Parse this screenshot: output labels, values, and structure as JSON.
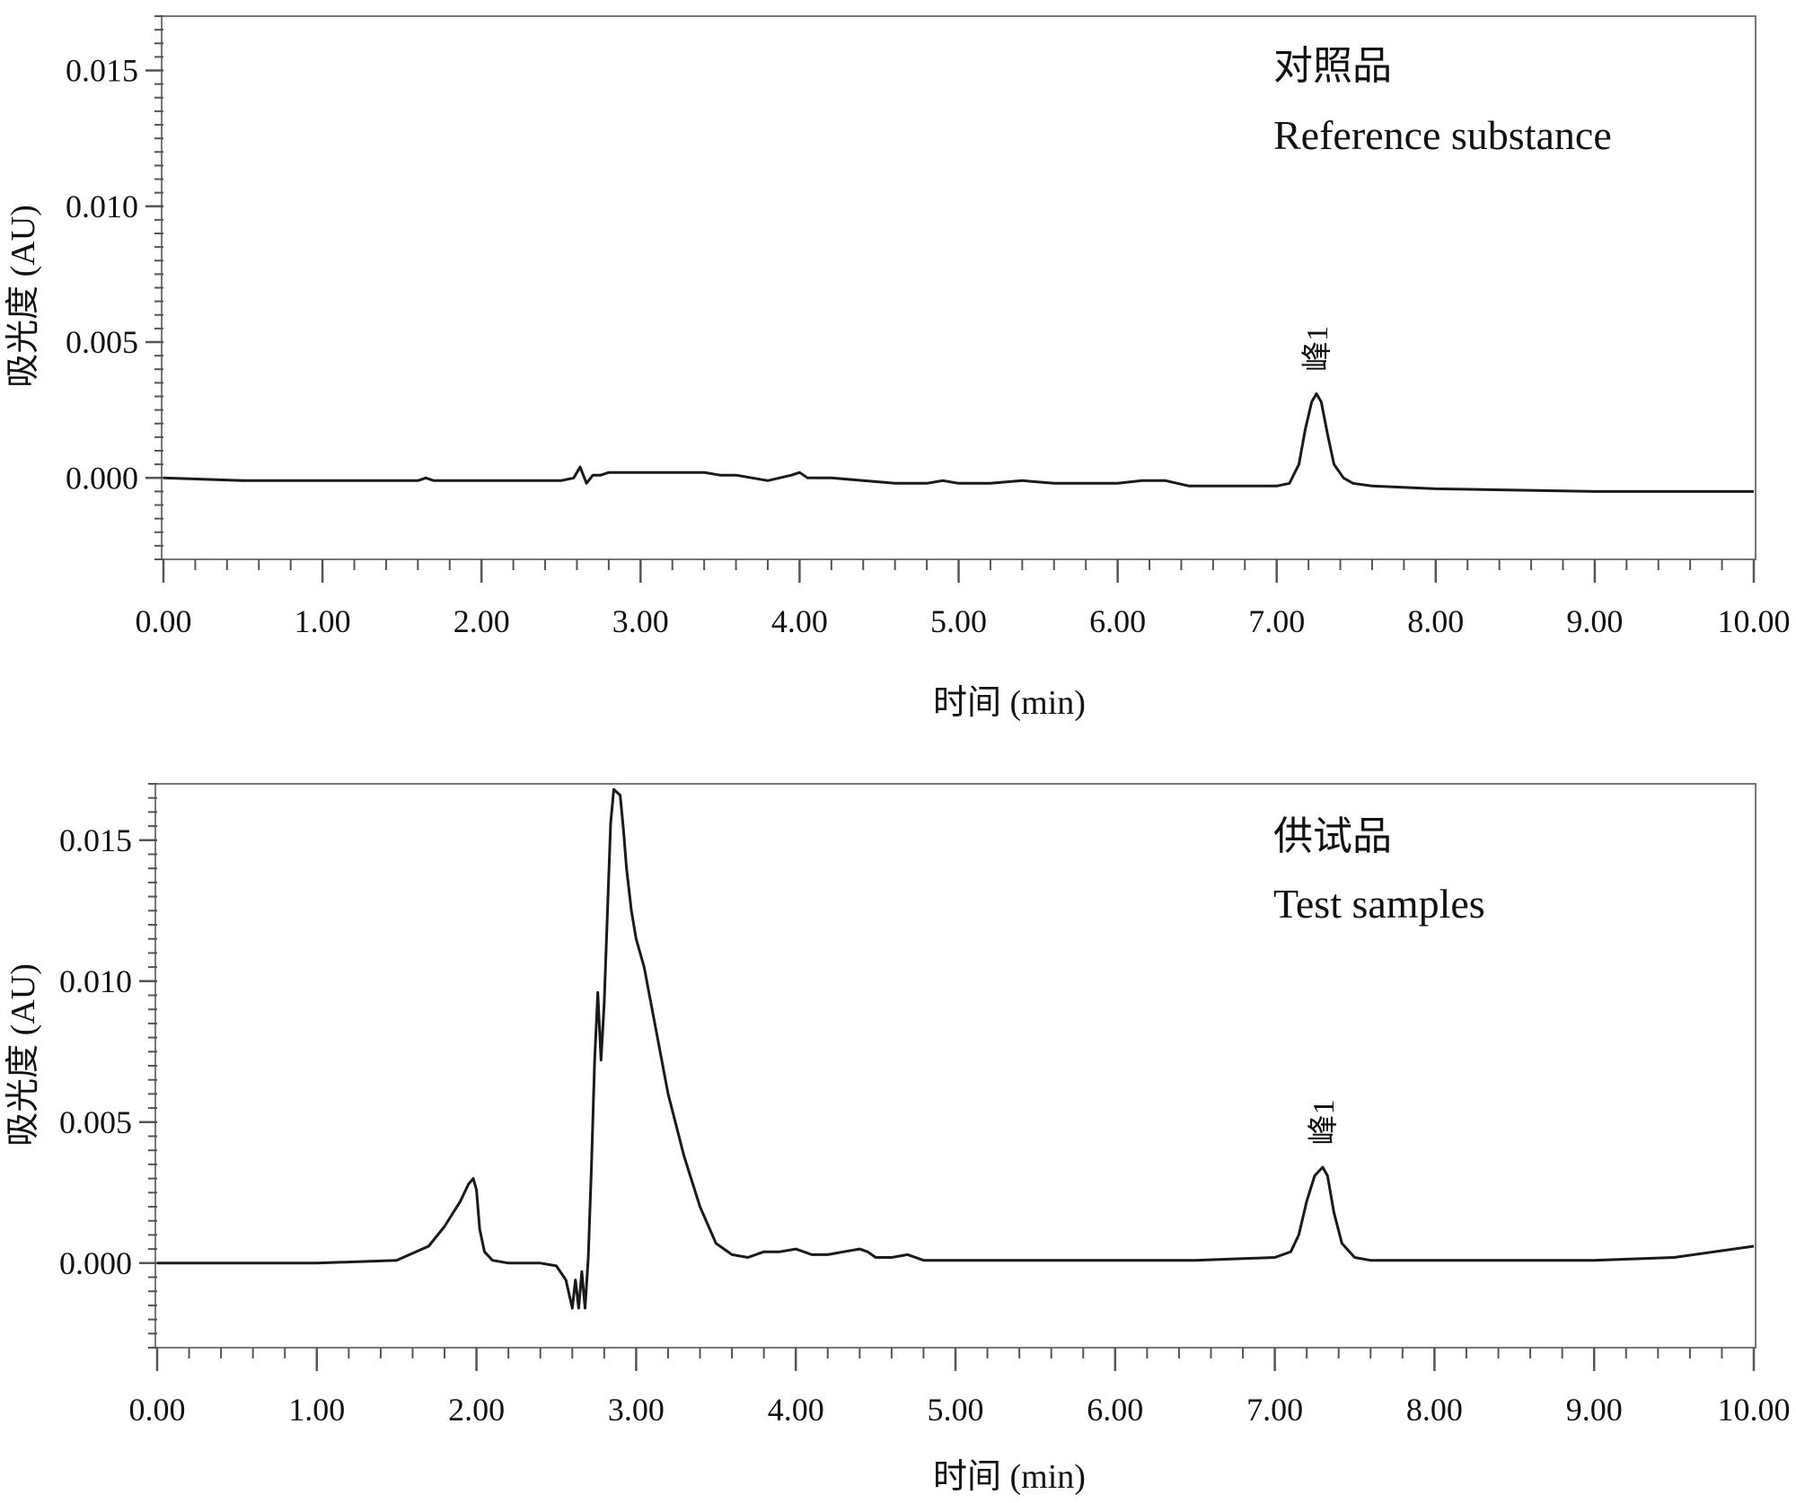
{
  "chart_data": [
    {
      "type": "line",
      "xlabel": "时间 (min)",
      "ylabel": "吸光度 (AU)",
      "xlim": [
        0,
        10
      ],
      "ylim": [
        -0.003,
        0.017
      ],
      "x_ticks": [
        "0.00",
        "1.00",
        "2.00",
        "3.00",
        "4.00",
        "5.00",
        "6.00",
        "7.00",
        "8.00",
        "9.00",
        "10.00"
      ],
      "y_ticks": [
        "0.000",
        "0.005",
        "0.010",
        "0.015"
      ],
      "grid": false,
      "annotation_zh": "对照品",
      "annotation_en": "Reference substance",
      "peak_labels": [
        {
          "text": "峰1",
          "x": 7.25,
          "y": 0.0031
        }
      ],
      "series": [
        {
          "x": [
            0,
            0.5,
            1.0,
            1.5,
            1.6,
            1.65,
            1.7,
            2.0,
            2.5,
            2.58,
            2.62,
            2.66,
            2.7,
            2.75,
            2.8,
            3.0,
            3.2,
            3.4,
            3.5,
            3.6,
            3.8,
            3.95,
            4.0,
            4.05,
            4.2,
            4.4,
            4.6,
            4.8,
            4.9,
            5.0,
            5.2,
            5.4,
            5.6,
            5.8,
            6.0,
            6.15,
            6.3,
            6.45,
            6.6,
            6.8,
            7.0,
            7.08,
            7.14,
            7.18,
            7.22,
            7.25,
            7.28,
            7.32,
            7.36,
            7.42,
            7.48,
            7.6,
            8.0,
            9.0,
            10.0
          ],
          "y": [
            0.0,
            -0.0001,
            -0.0001,
            -0.0001,
            -0.0001,
            0.0,
            -0.0001,
            -0.0001,
            -0.0001,
            0.0,
            0.0004,
            -0.0002,
            0.0001,
            0.0001,
            0.0002,
            0.0002,
            0.0002,
            0.0002,
            0.0001,
            0.0001,
            -0.0001,
            0.0001,
            0.0002,
            0.0,
            0.0,
            -0.0001,
            -0.0002,
            -0.0002,
            -0.0001,
            -0.0002,
            -0.0002,
            -0.0001,
            -0.0002,
            -0.0002,
            -0.0002,
            -0.0001,
            -0.0001,
            -0.0003,
            -0.0003,
            -0.0003,
            -0.0003,
            -0.0002,
            0.0005,
            0.0018,
            0.0028,
            0.0031,
            0.0028,
            0.0016,
            0.0005,
            0.0,
            -0.0002,
            -0.0003,
            -0.0004,
            -0.0005,
            -0.0005
          ]
        }
      ]
    },
    {
      "type": "line",
      "xlabel": "时间 (min)",
      "ylabel": "吸光度 (AU)",
      "xlim": [
        0,
        10
      ],
      "ylim": [
        -0.003,
        0.017
      ],
      "x_ticks": [
        "0.00",
        "1.00",
        "2.00",
        "3.00",
        "4.00",
        "5.00",
        "6.00",
        "7.00",
        "8.00",
        "9.00",
        "10.00"
      ],
      "y_ticks": [
        "0.000",
        "0.005",
        "0.010",
        "0.015"
      ],
      "grid": false,
      "annotation_zh": "供试品",
      "annotation_en": "Test samples",
      "peak_labels": [
        {
          "text": "峰1",
          "x": 7.3,
          "y": 0.0034
        }
      ],
      "series": [
        {
          "x": [
            0,
            1.0,
            1.5,
            1.7,
            1.8,
            1.9,
            1.95,
            1.98,
            2.0,
            2.02,
            2.05,
            2.1,
            2.2,
            2.4,
            2.5,
            2.56,
            2.6,
            2.62,
            2.64,
            2.66,
            2.68,
            2.7,
            2.72,
            2.74,
            2.76,
            2.78,
            2.8,
            2.82,
            2.84,
            2.86,
            2.9,
            2.92,
            2.94,
            2.97,
            3.0,
            3.05,
            3.1,
            3.15,
            3.2,
            3.3,
            3.4,
            3.5,
            3.55,
            3.6,
            3.7,
            3.8,
            3.9,
            4.0,
            4.05,
            4.1,
            4.2,
            4.3,
            4.4,
            4.45,
            4.5,
            4.6,
            4.7,
            4.75,
            4.8,
            5.0,
            5.5,
            6.0,
            6.5,
            7.0,
            7.1,
            7.15,
            7.2,
            7.25,
            7.3,
            7.33,
            7.37,
            7.42,
            7.5,
            7.6,
            8.0,
            9.0,
            9.5,
            10.0
          ],
          "y": [
            0.0,
            0.0,
            0.0001,
            0.0006,
            0.0013,
            0.0022,
            0.0028,
            0.003,
            0.0026,
            0.0012,
            0.0004,
            0.0001,
            0.0,
            0.0,
            -0.0001,
            -0.0006,
            -0.0016,
            -0.0006,
            -0.0016,
            -0.0003,
            -0.0016,
            0.0002,
            0.0034,
            0.0072,
            0.0096,
            0.0072,
            0.0092,
            0.0124,
            0.0156,
            0.0168,
            0.0166,
            0.0154,
            0.014,
            0.0125,
            0.0115,
            0.0105,
            0.009,
            0.0075,
            0.006,
            0.0038,
            0.002,
            0.0007,
            0.0005,
            0.0003,
            0.0002,
            0.0004,
            0.0004,
            0.0005,
            0.0004,
            0.0003,
            0.0003,
            0.0004,
            0.0005,
            0.0004,
            0.0002,
            0.0002,
            0.0003,
            0.0002,
            0.0001,
            0.0001,
            0.0001,
            0.0001,
            0.0001,
            0.0002,
            0.0004,
            0.001,
            0.0022,
            0.0031,
            0.0034,
            0.0031,
            0.0018,
            0.0007,
            0.0002,
            0.0001,
            0.0001,
            0.0001,
            0.0002,
            0.0006
          ]
        }
      ]
    }
  ]
}
